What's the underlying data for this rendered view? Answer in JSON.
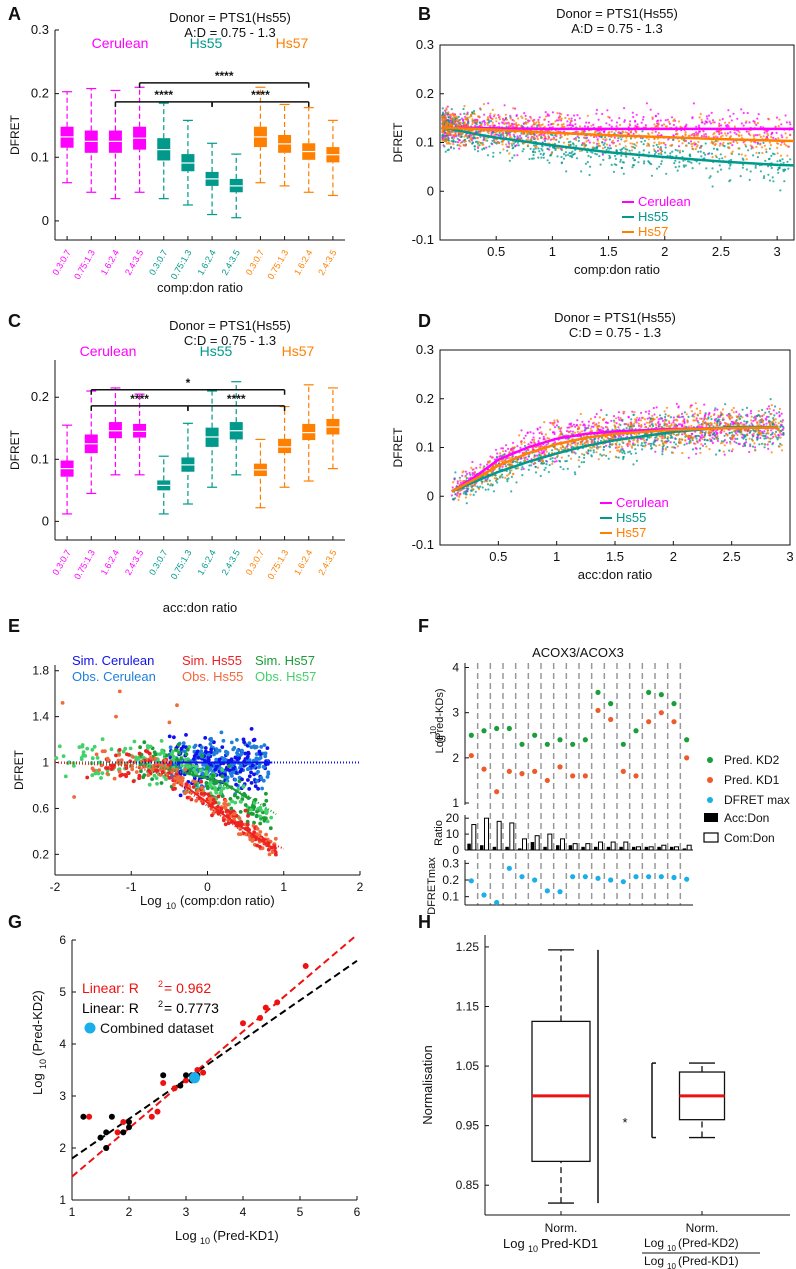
{
  "colors": {
    "cerulean": "#ff00ff",
    "hs55": "#00998c",
    "hs57": "#ff7f00",
    "simCer": "#1111ee",
    "obsCer": "#1e7fdc",
    "simHs55": "#ee2222",
    "obsHs55": "#f26a3c",
    "simHs57": "#1a9d36",
    "obsHs57": "#45d16a",
    "kd2": "#1a9e3c",
    "kd1": "#ef5a2a",
    "dfmax": "#1aaeea",
    "black": "#000000",
    "red": "#ee1111",
    "cyan": "#1aaeea"
  },
  "chart_data": [
    {
      "panel": "A",
      "type": "box",
      "title": [
        "Donor = PTS1(Hs55)",
        "A:D = 0.75 - 1.3"
      ],
      "groups": [
        "Cerulean",
        "Hs55",
        "Hs57"
      ],
      "ylabel": "DFRET",
      "xlabel": "comp:don ratio",
      "ylim": [
        -0.03,
        0.3
      ],
      "yticks": [
        0,
        0.1,
        0.2,
        0.3
      ],
      "yticklabels": [
        "0",
        "0.1",
        "0.2",
        "0.3"
      ],
      "categories": [
        "0.3:0.7",
        "0.75:1.3",
        "1.6:2.4",
        "2.4:3.5",
        "0.3:0.7",
        "0.75:1.3",
        "1.6:2.4",
        "2.4:3.5",
        "0.3:0.7",
        "0.75:1.3",
        "1.6:2.4",
        "2.4:3.5"
      ],
      "group_index": [
        0,
        0,
        0,
        0,
        1,
        1,
        1,
        1,
        2,
        2,
        2,
        2
      ],
      "boxes": [
        [
          0.06,
          0.115,
          0.132,
          0.148,
          0.203
        ],
        [
          0.045,
          0.107,
          0.125,
          0.142,
          0.208
        ],
        [
          0.035,
          0.107,
          0.125,
          0.142,
          0.205
        ],
        [
          0.045,
          0.112,
          0.13,
          0.148,
          0.21
        ],
        [
          0.035,
          0.095,
          0.112,
          0.13,
          0.185
        ],
        [
          0.025,
          0.078,
          0.091,
          0.105,
          0.158
        ],
        [
          0.01,
          0.055,
          0.066,
          0.077,
          0.122
        ],
        [
          0.005,
          0.045,
          0.055,
          0.066,
          0.105
        ],
        [
          0.06,
          0.116,
          0.132,
          0.148,
          0.21
        ],
        [
          0.055,
          0.107,
          0.121,
          0.135,
          0.183
        ],
        [
          0.045,
          0.096,
          0.109,
          0.122,
          0.178
        ],
        [
          0.04,
          0.092,
          0.104,
          0.116,
          0.158
        ]
      ],
      "brackets": [
        {
          "from": 3,
          "to": 10,
          "label": "****",
          "level": 0.217
        },
        {
          "from": 2,
          "to": 6,
          "label": "****",
          "level": 0.187
        },
        {
          "from": 6,
          "to": 10,
          "label": "****",
          "level": 0.187
        }
      ]
    },
    {
      "panel": "B",
      "type": "scatter",
      "title": [
        "Donor = PTS1(Hs55)",
        "A:D = 0.75 - 1.3"
      ],
      "ylabel": "DFRET",
      "xlabel": "comp:don ratio",
      "xlim": [
        0,
        3.15
      ],
      "ylim": [
        -0.1,
        0.3
      ],
      "xticks": [
        0.5,
        1,
        1.5,
        2,
        2.5,
        3
      ],
      "xticklabels": [
        "0.5",
        "1",
        "1.5",
        "2",
        "2.5",
        "3"
      ],
      "yticks": [
        -0.1,
        0,
        0.1,
        0.2,
        0.3
      ],
      "yticklabels": [
        "-0.1",
        "0",
        "0.1",
        "0.2",
        "0.3"
      ],
      "legend": [
        "Cerulean",
        "Hs55",
        "Hs57"
      ],
      "fits": {
        "x": [
          0.05,
          0.3,
          0.5,
          1,
          1.5,
          2,
          2.5,
          3,
          3.15
        ],
        "Cerulean": [
          0.13,
          0.13,
          0.129,
          0.128,
          0.128,
          0.128,
          0.128,
          0.128,
          0.128
        ],
        "Hs55": [
          0.13,
          0.118,
          0.11,
          0.094,
          0.08,
          0.07,
          0.061,
          0.054,
          0.053
        ],
        "Hs57": [
          0.13,
          0.128,
          0.126,
          0.12,
          0.115,
          0.111,
          0.107,
          0.104,
          0.103
        ]
      }
    },
    {
      "panel": "C",
      "type": "box",
      "title": [
        "Donor = PTS1(Hs55)",
        "C:D = 0.75 - 1.3"
      ],
      "groups": [
        "Cerulean",
        "Hs55",
        "Hs57"
      ],
      "ylabel": "DFRET",
      "xlabel": "acc:don ratio",
      "ylim": [
        -0.03,
        0.26
      ],
      "yticks": [
        0,
        0.1,
        0.2
      ],
      "yticklabels": [
        "0",
        "0.1",
        "0.2"
      ],
      "categories": [
        "0.3:0.7",
        "0.75:1.3",
        "1.6:2.4",
        "2.4:3.5",
        "0.3:0.7",
        "0.75:1.3",
        "1.6:2.4",
        "2.4:3.5",
        "0.3:0.7",
        "0.75:1.3",
        "1.6:2.4",
        "2.4:3.5"
      ],
      "group_index": [
        0,
        0,
        0,
        0,
        1,
        1,
        1,
        1,
        2,
        2,
        2,
        2
      ],
      "boxes": [
        [
          0.012,
          0.072,
          0.085,
          0.098,
          0.155
        ],
        [
          0.045,
          0.11,
          0.125,
          0.14,
          0.21
        ],
        [
          0.075,
          0.134,
          0.146,
          0.16,
          0.215
        ],
        [
          0.075,
          0.135,
          0.145,
          0.157,
          0.205
        ],
        [
          0.012,
          0.05,
          0.058,
          0.066,
          0.105
        ],
        [
          0.028,
          0.08,
          0.091,
          0.103,
          0.158
        ],
        [
          0.055,
          0.12,
          0.136,
          0.151,
          0.21
        ],
        [
          0.075,
          0.132,
          0.146,
          0.16,
          0.225
        ],
        [
          0.022,
          0.073,
          0.083,
          0.093,
          0.132
        ],
        [
          0.055,
          0.11,
          0.12,
          0.133,
          0.185
        ],
        [
          0.065,
          0.131,
          0.143,
          0.157,
          0.22
        ],
        [
          0.085,
          0.14,
          0.152,
          0.165,
          0.215
        ]
      ],
      "brackets": [
        {
          "from": 1,
          "to": 9,
          "label": "*",
          "level": 0.212
        },
        {
          "from": 1,
          "to": 5,
          "label": "****",
          "level": 0.186
        },
        {
          "from": 5,
          "to": 9,
          "label": "****",
          "level": 0.186
        }
      ]
    },
    {
      "panel": "D",
      "type": "scatter",
      "title": [
        "Donor = PTS1(Hs55)",
        "C:D = 0.75 - 1.3"
      ],
      "ylabel": "DFRET",
      "xlabel": "acc:don ratio",
      "xlim": [
        0,
        3
      ],
      "ylim": [
        -0.1,
        0.3
      ],
      "xticks": [
        0.5,
        1,
        1.5,
        2,
        2.5,
        3
      ],
      "xticklabels": [
        "0.5",
        "1",
        "1.5",
        "2",
        "2.5",
        "3"
      ],
      "yticks": [
        -0.1,
        0,
        0.1,
        0.2,
        0.3
      ],
      "yticklabels": [
        "-0.1",
        "0",
        "0.1",
        "0.2",
        "0.3"
      ],
      "legend": [
        "Cerulean",
        "Hs55",
        "Hs57"
      ],
      "fits": {
        "x": [
          0.1,
          0.3,
          0.5,
          0.75,
          1,
          1.25,
          1.5,
          2,
          2.5,
          2.9
        ],
        "Cerulean": [
          0.01,
          0.04,
          0.075,
          0.1,
          0.118,
          0.128,
          0.133,
          0.138,
          0.14,
          0.141
        ],
        "Hs55": [
          0.01,
          0.03,
          0.05,
          0.07,
          0.088,
          0.103,
          0.115,
          0.132,
          0.142,
          0.142
        ],
        "Hs57": [
          0.01,
          0.035,
          0.063,
          0.088,
          0.107,
          0.12,
          0.128,
          0.136,
          0.14,
          0.141
        ]
      }
    },
    {
      "panel": "E",
      "type": "scatter",
      "ylabel": "DFRET",
      "xlabel": "Log",
      "xlabel_sub": "10",
      "xlabel_rest": "(comp:don ratio)",
      "xlim": [
        -2,
        2
      ],
      "ylim": [
        0.02,
        1.85
      ],
      "xticks": [
        -2,
        -1,
        0,
        1,
        2
      ],
      "xticklabels": [
        "-2",
        "-1",
        "0",
        "1",
        "2"
      ],
      "yticks": [
        0.2,
        0.6,
        1,
        1.4,
        1.8
      ],
      "yticklabels": [
        "0.2",
        "0.6",
        "1",
        "1.4",
        "1.8"
      ],
      "legend": [
        "Sim. Cerulean",
        "Sim. Hs55",
        "Sim. Hs57",
        "Obs. Cerulean",
        "Obs. Hs55",
        "Obs. Hs57"
      ]
    },
    {
      "panel": "F",
      "type": "bar",
      "title": "ACOX3/ACOX3",
      "ylabel_top": "Log",
      "ylabel_top_sup": "10",
      "ylabel_top_rest": "(Pred-KDs)",
      "ylabel_mid": "Ratio",
      "ylabel_bot": "DFRETmax",
      "legend": [
        "Pred. KD2",
        "Pred. KD1",
        "DFRET max",
        "Acc:Don",
        "Com:Don"
      ],
      "top_yticks": [
        1,
        2,
        3,
        4
      ],
      "top_yticklabels": [
        "1",
        "2",
        "3",
        "4"
      ],
      "mid_yticks": [
        0,
        10,
        20
      ],
      "mid_yticklabels": [
        "0",
        "10",
        "20"
      ],
      "bot_yticks": [
        0.1,
        0.2,
        0.3
      ],
      "bot_yticklabels": [
        "0.1",
        "0.2",
        "0.3"
      ],
      "kd2": [
        2.5,
        2.6,
        2.65,
        2.65,
        2.3,
        2.5,
        2.3,
        2.4,
        2.3,
        2.4,
        3.45,
        3.2,
        2.3,
        2.6,
        3.45,
        3.4,
        3.2,
        2.4
      ],
      "kd1": [
        2.05,
        1.75,
        1.25,
        1.7,
        1.65,
        1.7,
        1.5,
        1.8,
        1.6,
        1.6,
        3.05,
        2.85,
        1.7,
        1.6,
        2.8,
        3.0,
        2.8,
        2.0
      ],
      "acc_don": [
        4,
        3,
        2,
        2,
        1,
        5,
        2,
        3,
        3,
        2,
        2,
        2,
        2,
        2,
        2,
        2,
        2,
        1
      ],
      "com_don": [
        16,
        20,
        18,
        17,
        7,
        9,
        10,
        7,
        4,
        4,
        5,
        5,
        5,
        2,
        2,
        3,
        2,
        3
      ],
      "dfret_max": [
        0.195,
        0.11,
        0.065,
        0.27,
        0.22,
        0.2,
        0.135,
        0.13,
        0.22,
        0.22,
        0.21,
        0.2,
        0.19,
        0.22,
        0.22,
        0.22,
        0.215,
        0.205
      ]
    },
    {
      "panel": "G",
      "type": "scatter",
      "xlabel": "Log",
      "xlabel_sub": "10",
      "xlabel_rest": "(Pred-KD1)",
      "ylabel": "Log",
      "ylabel_sub": "10",
      "ylabel_rest": "(Pred-KD2)",
      "xlim": [
        1,
        6
      ],
      "ylim": [
        1,
        6
      ],
      "xticks": [
        1,
        2,
        3,
        4,
        5,
        6
      ],
      "xticklabels": [
        "1",
        "2",
        "3",
        "4",
        "5",
        "6"
      ],
      "yticks": [
        1,
        2,
        3,
        4,
        5,
        6
      ],
      "yticklabels": [
        "1",
        "2",
        "3",
        "4",
        "5",
        "6"
      ],
      "annotations": [
        {
          "text_a": "Linear: R",
          "sup": "2",
          "text_b": " = 0.962",
          "color": "red"
        },
        {
          "text_a": "Linear: R",
          "sup": "2",
          "text_b": " = 0.7773",
          "color": "black"
        },
        {
          "text": "Combined dataset",
          "color": "cyan"
        }
      ],
      "red_points": [
        [
          1.3,
          2.6
        ],
        [
          1.6,
          2.0
        ],
        [
          1.8,
          2.3
        ],
        [
          1.9,
          2.5
        ],
        [
          2.4,
          2.6
        ],
        [
          2.5,
          2.7
        ],
        [
          2.6,
          3.25
        ],
        [
          2.8,
          3.15
        ],
        [
          3.0,
          3.3
        ],
        [
          3.2,
          3.5
        ],
        [
          3.3,
          3.45
        ],
        [
          4.0,
          4.4
        ],
        [
          4.3,
          4.5
        ],
        [
          4.4,
          4.7
        ],
        [
          4.6,
          4.8
        ],
        [
          5.1,
          5.5
        ]
      ],
      "black_points": [
        [
          1.2,
          2.6
        ],
        [
          1.5,
          2.2
        ],
        [
          1.6,
          2.3
        ],
        [
          1.6,
          2.0
        ],
        [
          1.7,
          2.6
        ],
        [
          1.9,
          2.3
        ],
        [
          2.0,
          2.4
        ],
        [
          2.0,
          2.5
        ],
        [
          2.6,
          3.4
        ],
        [
          2.9,
          3.2
        ],
        [
          3.0,
          3.4
        ],
        [
          3.1,
          3.3
        ],
        [
          3.1,
          3.4
        ],
        [
          3.2,
          3.4
        ]
      ],
      "combined_point": [
        3.15,
        3.35
      ],
      "red_fit": [
        [
          1,
          1.45
        ],
        [
          6,
          6.1
        ]
      ],
      "black_fit": [
        [
          1,
          1.8
        ],
        [
          6,
          5.6
        ]
      ]
    },
    {
      "panel": "H",
      "type": "box",
      "ylabel": "Normalisation",
      "ylim": [
        0.8,
        1.27
      ],
      "yticks": [
        0.85,
        0.95,
        1.05,
        1.15,
        1.25
      ],
      "yticklabels": [
        "0.85",
        "0.95",
        "1.05",
        "1.15",
        "1.25"
      ],
      "cat1_a": "Norm.",
      "cat1_b": "Log",
      "cat1_b_sub": "10",
      "cat1_b_rest": "Pred-KD1",
      "cat2_a": "Norm.",
      "cat2_num": "Log",
      "cat2_num_sub": "10",
      "cat2_num_rest": "(Pred-KD2)",
      "cat2_den": "Log",
      "cat2_den_sub": "10",
      "cat2_den_rest": "(Pred-KD1)",
      "boxes": [
        [
          0.82,
          0.89,
          1.0,
          1.125,
          1.245
        ],
        [
          0.93,
          0.96,
          1.0,
          1.04,
          1.055
        ]
      ],
      "significance": "*"
    }
  ],
  "panel_letters": [
    "A",
    "B",
    "C",
    "D",
    "E",
    "F",
    "G",
    "H"
  ]
}
